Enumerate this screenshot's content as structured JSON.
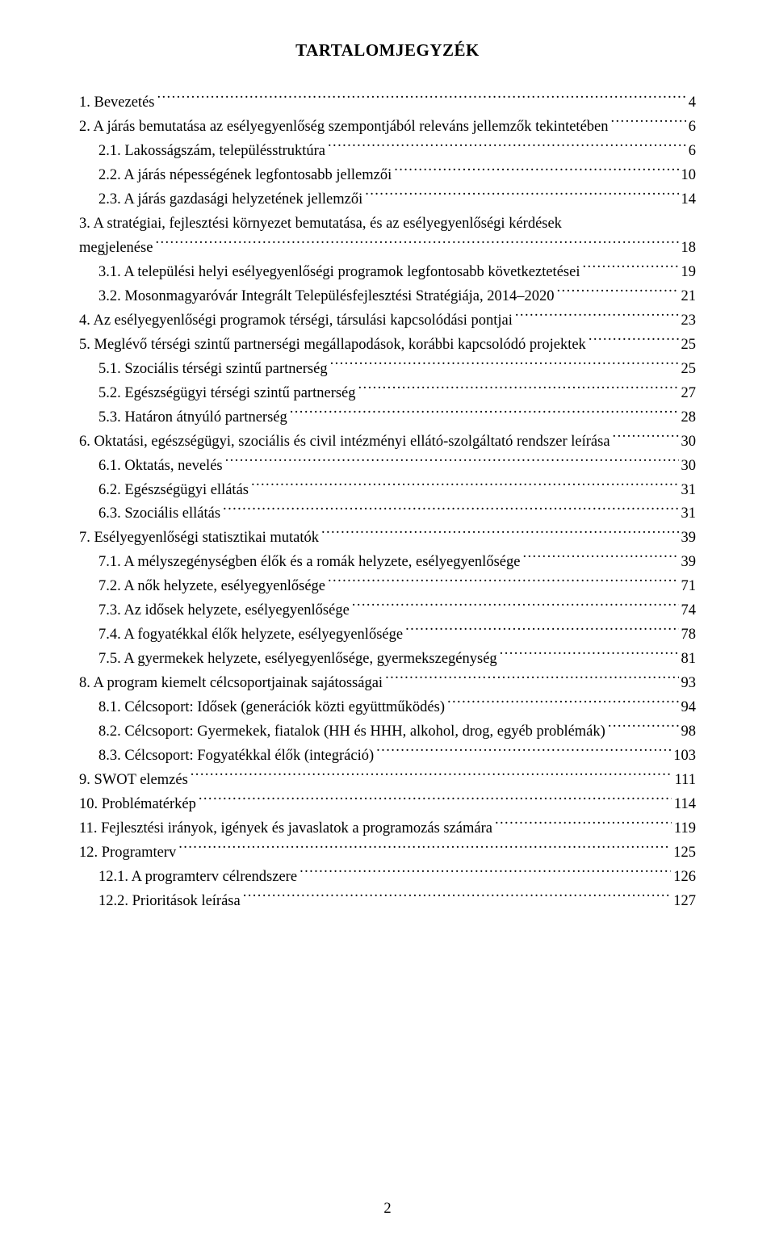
{
  "doc": {
    "title": "TARTALOMJEGYZÉK",
    "page_number": "2",
    "text_color": "#000000",
    "background_color": "#ffffff",
    "font_family": "Times New Roman",
    "title_fontsize_pt": 16,
    "body_fontsize_pt": 14
  },
  "toc": [
    {
      "indent": 0,
      "text": "1. Bevezetés",
      "page": "4"
    },
    {
      "indent": 0,
      "text": "2. A járás bemutatása az esélyegyenlőség szempontjából releváns jellemzők tekintetében",
      "page": "6"
    },
    {
      "indent": 1,
      "text": "2.1. Lakosságszám, településstruktúra",
      "page": "6"
    },
    {
      "indent": 1,
      "text": "2.2. A járás népességének legfontosabb jellemzői",
      "page": "10"
    },
    {
      "indent": 1,
      "text": "2.3. A járás gazdasági helyzetének jellemzői",
      "page": "14"
    },
    {
      "indent": 0,
      "text_a": "3. A stratégiai, fejlesztési környezet bemutatása, és az esélyegyenlőségi kérdések",
      "text_b": "megjelenése",
      "page": "18"
    },
    {
      "indent": 1,
      "text": "3.1. A települési helyi esélyegyenlőségi programok legfontosabb következtetései",
      "page": "19"
    },
    {
      "indent": 1,
      "text": "3.2. Mosonmagyaróvár Integrált Településfejlesztési Stratégiája, 2014–2020",
      "page": "21"
    },
    {
      "indent": 0,
      "text": "4. Az esélyegyenlőségi programok térségi, társulási kapcsolódási pontjai",
      "page": "23"
    },
    {
      "indent": 0,
      "text": "5. Meglévő térségi szintű partnerségi megállapodások, korábbi kapcsolódó projektek",
      "page": "25"
    },
    {
      "indent": 1,
      "text": "5.1. Szociális térségi szintű partnerség",
      "page": "25"
    },
    {
      "indent": 1,
      "text": "5.2. Egészségügyi térségi szintű partnerség",
      "page": "27"
    },
    {
      "indent": 1,
      "text": "5.3. Határon átnyúló partnerség",
      "page": "28"
    },
    {
      "indent": 0,
      "text": "6. Oktatási, egészségügyi, szociális és civil intézményi ellátó-szolgáltató rendszer leírása",
      "page": "30"
    },
    {
      "indent": 1,
      "text": "6.1. Oktatás, nevelés",
      "page": "30"
    },
    {
      "indent": 1,
      "text": "6.2. Egészségügyi ellátás",
      "page": "31"
    },
    {
      "indent": 1,
      "text": "6.3. Szociális ellátás",
      "page": "31"
    },
    {
      "indent": 0,
      "text": "7. Esélyegyenlőségi statisztikai mutatók",
      "page": "39"
    },
    {
      "indent": 1,
      "text": "7.1. A mélyszegénységben élők és a romák helyzete, esélyegyenlősége",
      "page": "39"
    },
    {
      "indent": 1,
      "text": "7.2. A nők helyzete, esélyegyenlősége",
      "page": "71"
    },
    {
      "indent": 1,
      "text": "7.3. Az idősek helyzete, esélyegyenlősége",
      "page": "74"
    },
    {
      "indent": 1,
      "text": "7.4. A fogyatékkal élők helyzete, esélyegyenlősége",
      "page": "78"
    },
    {
      "indent": 1,
      "text": "7.5. A gyermekek helyzete, esélyegyenlősége, gyermekszegénység",
      "page": "81"
    },
    {
      "indent": 0,
      "text": "8. A program kiemelt célcsoportjainak sajátosságai",
      "page": "93"
    },
    {
      "indent": 1,
      "text": "8.1. Célcsoport: Idősek (generációk közti együttműködés)",
      "page": "94"
    },
    {
      "indent": 1,
      "text": "8.2. Célcsoport: Gyermekek, fiatalok (HH és HHH, alkohol, drog, egyéb problémák)",
      "page": "98"
    },
    {
      "indent": 1,
      "text": "8.3. Célcsoport: Fogyatékkal élők (integráció)",
      "page": "103"
    },
    {
      "indent": 0,
      "text": "9. SWOT elemzés",
      "page": "111"
    },
    {
      "indent": 0,
      "text": "10. Problématérkép",
      "page": "114"
    },
    {
      "indent": 0,
      "text": "11. Fejlesztési irányok, igények és javaslatok a programozás számára",
      "page": "119"
    },
    {
      "indent": 0,
      "text": "12. Programterv",
      "page": "125"
    },
    {
      "indent": 1,
      "text": "12.1. A programterv célrendszere",
      "page": "126"
    },
    {
      "indent": 1,
      "text": "12.2. Prioritások leírása",
      "page": "127"
    }
  ]
}
